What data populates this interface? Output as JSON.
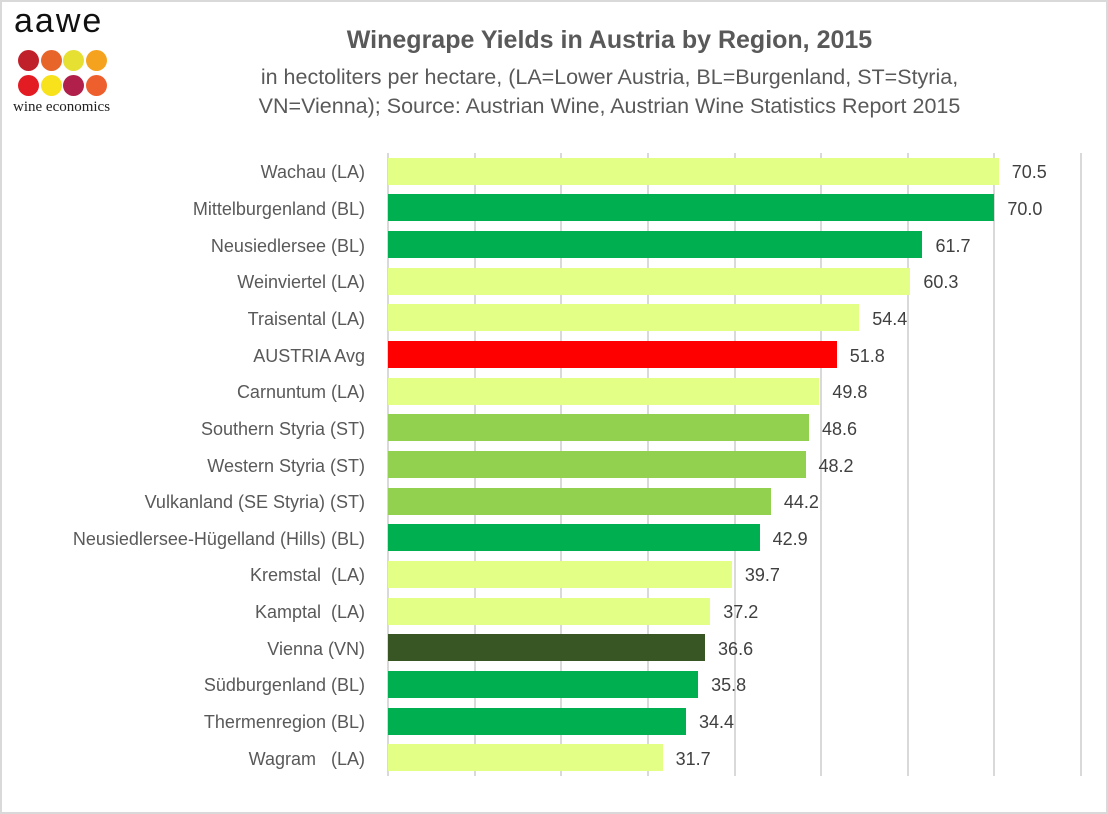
{
  "logo": {
    "wordmark": "aawe",
    "tagline": "wine economics",
    "dot_colors": [
      "#C0202A",
      "#E8652A",
      "#E6E033",
      "#F5A21F",
      "#E31B23",
      "#F7E21B",
      "#B0204A",
      "#EE5F2E"
    ]
  },
  "chart_data": {
    "type": "bar",
    "orientation": "horizontal",
    "title": "Winegrape Yields in Austria by Region, 2015",
    "subtitle_lines": [
      "in hectoliters per hectare, (LA=Lower Austria, BL=Burgenland, ST=Styria,",
      "VN=Vienna); Source: Austrian Wine, Austrian Wine Statistics Report 2015"
    ],
    "xlabel": "",
    "ylabel": "",
    "xlim": [
      0,
      80
    ],
    "grid": true,
    "gridline_step": 10,
    "tick_labels_visible": false,
    "legend": null,
    "data_labels": true,
    "categories": [
      "Wachau (LA)",
      "Mittelburgenland (BL)",
      "Neusiedlersee (BL)",
      "Weinviertel (LA)",
      "Traisental (LA)",
      "AUSTRIA Avg",
      "Carnuntum (LA)",
      "Southern Styria (ST)",
      "Western Styria (ST)",
      "Vulkanland (SE Styria) (ST)",
      "Neusiedlersee-Hügelland (Hills) (BL)",
      "Kremstal  (LA)",
      "Kamptal  (LA)",
      "Vienna (VN)",
      "Südburgenland (BL)",
      "Thermenregion (BL)",
      "Wagram   (LA)"
    ],
    "values": [
      70.5,
      70.0,
      61.7,
      60.3,
      54.4,
      51.8,
      49.8,
      48.6,
      48.2,
      44.2,
      42.9,
      39.7,
      37.2,
      36.6,
      35.8,
      34.4,
      31.7
    ],
    "value_labels": [
      "70.5",
      "70.0",
      "61.7",
      "60.3",
      "54.4",
      "51.8",
      "49.8",
      "48.6",
      "48.2",
      "44.2",
      "42.9",
      "39.7",
      "37.2",
      "36.6",
      "35.8",
      "34.4",
      "31.7"
    ],
    "colors": [
      "#E3FF85",
      "#00B050",
      "#00B050",
      "#E3FF85",
      "#E3FF85",
      "#FF0000",
      "#E3FF85",
      "#92D050",
      "#92D050",
      "#92D050",
      "#00B050",
      "#E3FF85",
      "#E3FF85",
      "#375623",
      "#00B050",
      "#00B050",
      "#E3FF85"
    ],
    "region_color_key": {
      "LA": "#E3FF85",
      "BL": "#00B050",
      "ST": "#92D050",
      "VN": "#375623",
      "AUSTRIA Avg": "#FF0000"
    }
  }
}
